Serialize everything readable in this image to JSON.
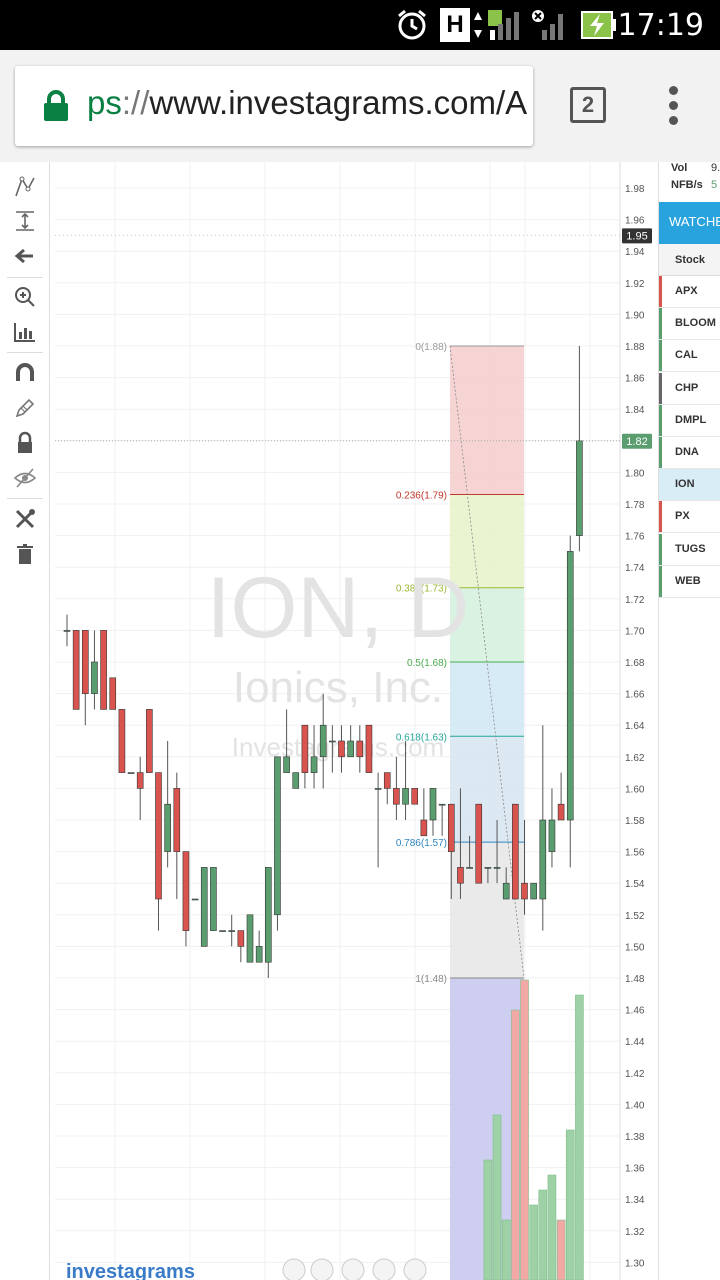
{
  "status_bar": {
    "time": "17:19",
    "icons": [
      "alarm-icon",
      "hspa-icon",
      "signal-icon",
      "no-signal-icon",
      "battery-charging-icon"
    ],
    "network_label": "H"
  },
  "browser": {
    "url_scheme": "ps",
    "url_separator": "://",
    "url_host": "www.investagrams.com/A",
    "tab_count": "2"
  },
  "toolbar": {
    "icons": [
      "trend-line-icon",
      "measure-icon",
      "arrow-left-icon",
      "zoom-in-icon",
      "ruler-icon",
      "magnet-icon",
      "pencil-icon",
      "lock-icon",
      "hide-icon",
      "tools-icon",
      "trash-icon"
    ]
  },
  "chart": {
    "watermark_symbol": "ION, D",
    "watermark_name": "Ionics, Inc.",
    "watermark_site": "Investagrams.com",
    "logo": "investagrams",
    "current_price_label": "1.82",
    "marker_price_label": "1.95",
    "colors": {
      "up": "#5a9e6f",
      "down": "#d9534f",
      "fib0": "#f4cccc",
      "fib1": "#e6f2c8",
      "fib2": "#d4f0dc",
      "fib3": "#cfe8f3",
      "fib4": "#d6e4f0",
      "fib5": "#e6e6e6",
      "volume_fill": "#c9c9f0",
      "price_tag": "#5a9e6f"
    }
  },
  "chart_data": {
    "type": "candlestick",
    "title": "ION, D",
    "subtitle": "Ionics, Inc.",
    "ylim": [
      1.29,
      1.99
    ],
    "y_ticks": [
      "1.98",
      "1.96",
      "1.94",
      "1.92",
      "1.90",
      "1.88",
      "1.86",
      "1.84",
      "1.82",
      "1.80",
      "1.78",
      "1.76",
      "1.74",
      "1.72",
      "1.70",
      "1.68",
      "1.66",
      "1.64",
      "1.62",
      "1.60",
      "1.58",
      "1.56",
      "1.54",
      "1.52",
      "1.50",
      "1.48",
      "1.46",
      "1.44",
      "1.42",
      "1.40",
      "1.38",
      "1.36",
      "1.34",
      "1.32",
      "1.30"
    ],
    "fibonacci": [
      {
        "label": "0(1.88)",
        "value": 1.88,
        "color": "#999999"
      },
      {
        "label": "0.236(1.79)",
        "value": 1.786,
        "color": "#c0392b"
      },
      {
        "label": "0.382(1.73)",
        "value": 1.727,
        "color": "#9ab833"
      },
      {
        "label": "0.5(1.68)",
        "value": 1.68,
        "color": "#4caf50"
      },
      {
        "label": "0.618(1.63)",
        "value": 1.633,
        "color": "#26a69a"
      },
      {
        "label": "0.786(1.57)",
        "value": 1.566,
        "color": "#2e86c1"
      },
      {
        "label": "1(1.48)",
        "value": 1.48,
        "color": "#888888"
      }
    ],
    "candles": [
      {
        "o": 1.7,
        "h": 1.71,
        "l": 1.69,
        "c": 1.7
      },
      {
        "o": 1.7,
        "h": 1.7,
        "l": 1.65,
        "c": 1.65
      },
      {
        "o": 1.7,
        "h": 1.7,
        "l": 1.64,
        "c": 1.66
      },
      {
        "o": 1.66,
        "h": 1.7,
        "l": 1.65,
        "c": 1.68
      },
      {
        "o": 1.7,
        "h": 1.7,
        "l": 1.65,
        "c": 1.65
      },
      {
        "o": 1.67,
        "h": 1.67,
        "l": 1.65,
        "c": 1.65
      },
      {
        "o": 1.65,
        "h": 1.65,
        "l": 1.61,
        "c": 1.61
      },
      {
        "o": 1.61,
        "h": 1.61,
        "l": 1.61,
        "c": 1.61
      },
      {
        "o": 1.61,
        "h": 1.62,
        "l": 1.58,
        "c": 1.6
      },
      {
        "o": 1.65,
        "h": 1.65,
        "l": 1.61,
        "c": 1.61
      },
      {
        "o": 1.61,
        "h": 1.61,
        "l": 1.51,
        "c": 1.53
      },
      {
        "o": 1.56,
        "h": 1.63,
        "l": 1.55,
        "c": 1.59
      },
      {
        "o": 1.6,
        "h": 1.61,
        "l": 1.53,
        "c": 1.56
      },
      {
        "o": 1.56,
        "h": 1.56,
        "l": 1.5,
        "c": 1.51
      },
      {
        "o": 1.53,
        "h": 1.53,
        "l": 1.53,
        "c": 1.53
      },
      {
        "o": 1.5,
        "h": 1.55,
        "l": 1.5,
        "c": 1.55
      },
      {
        "o": 1.51,
        "h": 1.55,
        "l": 1.51,
        "c": 1.55
      },
      {
        "o": 1.51,
        "h": 1.51,
        "l": 1.51,
        "c": 1.51
      },
      {
        "o": 1.51,
        "h": 1.52,
        "l": 1.5,
        "c": 1.51
      },
      {
        "o": 1.51,
        "h": 1.51,
        "l": 1.49,
        "c": 1.5
      },
      {
        "o": 1.49,
        "h": 1.52,
        "l": 1.49,
        "c": 1.52
      },
      {
        "o": 1.49,
        "h": 1.51,
        "l": 1.49,
        "c": 1.5
      },
      {
        "o": 1.49,
        "h": 1.55,
        "l": 1.48,
        "c": 1.55
      },
      {
        "o": 1.52,
        "h": 1.62,
        "l": 1.51,
        "c": 1.62
      },
      {
        "o": 1.61,
        "h": 1.65,
        "l": 1.61,
        "c": 1.62
      },
      {
        "o": 1.6,
        "h": 1.61,
        "l": 1.6,
        "c": 1.61
      },
      {
        "o": 1.64,
        "h": 1.64,
        "l": 1.6,
        "c": 1.61
      },
      {
        "o": 1.61,
        "h": 1.64,
        "l": 1.6,
        "c": 1.62
      },
      {
        "o": 1.62,
        "h": 1.66,
        "l": 1.6,
        "c": 1.64
      },
      {
        "o": 1.63,
        "h": 1.64,
        "l": 1.61,
        "c": 1.63
      },
      {
        "o": 1.63,
        "h": 1.64,
        "l": 1.61,
        "c": 1.62
      },
      {
        "o": 1.62,
        "h": 1.64,
        "l": 1.62,
        "c": 1.63
      },
      {
        "o": 1.63,
        "h": 1.64,
        "l": 1.61,
        "c": 1.62
      },
      {
        "o": 1.64,
        "h": 1.64,
        "l": 1.61,
        "c": 1.61
      },
      {
        "o": 1.6,
        "h": 1.61,
        "l": 1.55,
        "c": 1.6
      },
      {
        "o": 1.61,
        "h": 1.61,
        "l": 1.59,
        "c": 1.6
      },
      {
        "o": 1.6,
        "h": 1.62,
        "l": 1.58,
        "c": 1.59
      },
      {
        "o": 1.59,
        "h": 1.63,
        "l": 1.58,
        "c": 1.6
      },
      {
        "o": 1.6,
        "h": 1.6,
        "l": 1.59,
        "c": 1.59
      },
      {
        "o": 1.58,
        "h": 1.6,
        "l": 1.57,
        "c": 1.57
      },
      {
        "o": 1.58,
        "h": 1.6,
        "l": 1.57,
        "c": 1.6
      },
      {
        "o": 1.59,
        "h": 1.59,
        "l": 1.57,
        "c": 1.59
      },
      {
        "o": 1.59,
        "h": 1.59,
        "l": 1.53,
        "c": 1.56
      },
      {
        "o": 1.55,
        "h": 1.6,
        "l": 1.53,
        "c": 1.54
      },
      {
        "o": 1.55,
        "h": 1.57,
        "l": 1.55,
        "c": 1.55
      },
      {
        "o": 1.59,
        "h": 1.59,
        "l": 1.54,
        "c": 1.54
      },
      {
        "o": 1.55,
        "h": 1.55,
        "l": 1.54,
        "c": 1.55
      },
      {
        "o": 1.55,
        "h": 1.58,
        "l": 1.54,
        "c": 1.55
      },
      {
        "o": 1.53,
        "h": 1.55,
        "l": 1.53,
        "c": 1.54
      },
      {
        "o": 1.59,
        "h": 1.59,
        "l": 1.53,
        "c": 1.53
      },
      {
        "o": 1.54,
        "h": 1.58,
        "l": 1.52,
        "c": 1.53
      },
      {
        "o": 1.53,
        "h": 1.54,
        "l": 1.53,
        "c": 1.54
      },
      {
        "o": 1.53,
        "h": 1.64,
        "l": 1.51,
        "c": 1.58
      },
      {
        "o": 1.56,
        "h": 1.6,
        "l": 1.55,
        "c": 1.58
      },
      {
        "o": 1.59,
        "h": 1.61,
        "l": 1.58,
        "c": 1.58
      },
      {
        "o": 1.58,
        "h": 1.76,
        "l": 1.55,
        "c": 1.75
      },
      {
        "o": 1.76,
        "h": 1.88,
        "l": 1.75,
        "c": 1.82
      }
    ],
    "volume_recent": [
      0.4,
      0.55,
      0.2,
      0.9,
      1.0,
      0.25,
      0.3,
      0.35,
      0.2,
      0.5,
      0.95
    ]
  },
  "watchlist": {
    "vol_label": "Vol",
    "vol_value": "9.",
    "nfb_label": "NFB/s",
    "nfb_value": "5",
    "header": "WATCHE",
    "column_head": "Stock",
    "stocks": [
      {
        "name": "APX",
        "color": "#d9534f"
      },
      {
        "name": "BLOOM",
        "color": "#5a9e6f"
      },
      {
        "name": "CAL",
        "color": "#5a9e6f"
      },
      {
        "name": "CHP",
        "color": "#666666"
      },
      {
        "name": "DMPL",
        "color": "#5a9e6f"
      },
      {
        "name": "DNA",
        "color": "#5a9e6f"
      },
      {
        "name": "ION",
        "color": "#d9edf7",
        "selected": true
      },
      {
        "name": "PX",
        "color": "#d9534f"
      },
      {
        "name": "TUGS",
        "color": "#5a9e6f"
      },
      {
        "name": "WEB",
        "color": "#5a9e6f"
      }
    ]
  }
}
